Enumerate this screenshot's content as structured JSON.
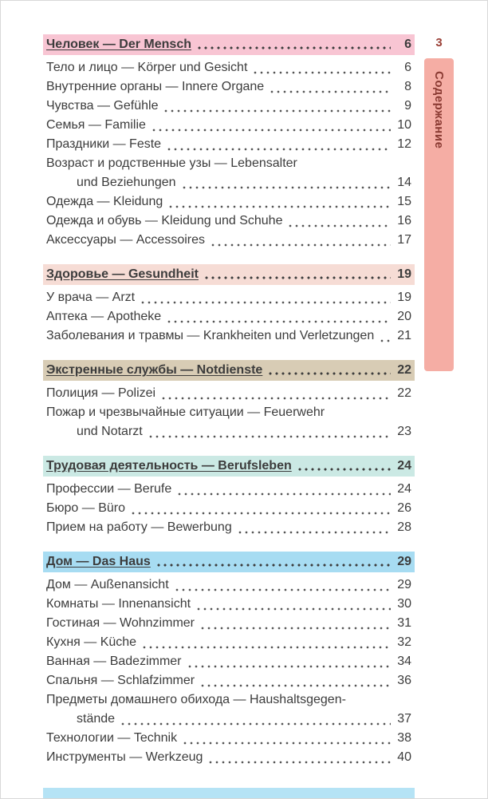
{
  "sidebar": {
    "page_number": "3",
    "tab_label": "Содержание"
  },
  "colors": {
    "text": "#3c3c3c",
    "tab_bg": "#f5ada4",
    "tab_text": "#8a3a32",
    "page_number_text": "#9a3f36",
    "header_1": "#f8c5d3",
    "header_2": "#f6dcd5",
    "header_3": "#d8ccb5",
    "header_4": "#cbe9e4",
    "header_5": "#a7dcf2",
    "bottom_bar": "#b5e3f5"
  },
  "sections": [
    {
      "header": {
        "text": "Человек — Der Mensch",
        "page": "6"
      },
      "items": [
        {
          "text": "Тело и лицо — Körper und Gesicht",
          "page": "6"
        },
        {
          "text": "Внутренние органы — Innere Organe",
          "page": "8"
        },
        {
          "text": "Чувства — Gefühle",
          "page": "9"
        },
        {
          "text": "Семья — Familie",
          "page": "10"
        },
        {
          "text": "Праздники — Feste",
          "page": "12"
        },
        {
          "text": "Возраст и родственные узы — Lebensalter",
          "text2": "und Beziehungen",
          "page": "14"
        },
        {
          "text": "Одежда — Kleidung",
          "page": "15"
        },
        {
          "text": "Одежда и обувь — Kleidung und Schuhe",
          "page": "16"
        },
        {
          "text": "Аксессуары — Accessoires",
          "page": "17"
        }
      ]
    },
    {
      "header": {
        "text": "Здоровье — Gesundheit",
        "page": "19"
      },
      "items": [
        {
          "text": "У врача — Arzt",
          "page": "19"
        },
        {
          "text": "Аптека — Apotheke",
          "page": "20"
        },
        {
          "text": "Заболевания и травмы — Krankheiten und Verletzungen",
          "page": "21"
        }
      ]
    },
    {
      "header": {
        "text": "Экстренные службы — Notdienste",
        "page": "22"
      },
      "items": [
        {
          "text": "Полиция — Polizei",
          "page": "22"
        },
        {
          "text": "Пожар и чрезвычайные ситуации — Feuerwehr",
          "text2": "und Notarzt",
          "page": "23"
        }
      ]
    },
    {
      "header": {
        "text": "Трудовая деятельность — Berufsleben",
        "page": "24"
      },
      "items": [
        {
          "text": "Профессии — Berufe",
          "page": "24"
        },
        {
          "text": "Бюро — Büro",
          "page": "26"
        },
        {
          "text": "Прием на работу — Bewerbung",
          "page": "28"
        }
      ]
    },
    {
      "header": {
        "text": "Дом — Das Haus",
        "page": "29"
      },
      "items": [
        {
          "text": "Дом — Außenansicht",
          "page": "29"
        },
        {
          "text": "Комнаты — Innenansicht",
          "page": "30"
        },
        {
          "text": "Гостиная — Wohnzimmer",
          "page": "31"
        },
        {
          "text": "Кухня — Küche",
          "page": "32"
        },
        {
          "text": "Ванная — Badezimmer",
          "page": "34"
        },
        {
          "text": "Спальня — Schlafzimmer",
          "page": "36"
        },
        {
          "text": "Предметы домашнего обихода — Haushaltsgegen-",
          "text2": "stände",
          "page": "37"
        },
        {
          "text": "Технологии — Technik",
          "page": "38"
        },
        {
          "text": "Инструменты — Werkzeug",
          "page": "40"
        }
      ]
    }
  ]
}
